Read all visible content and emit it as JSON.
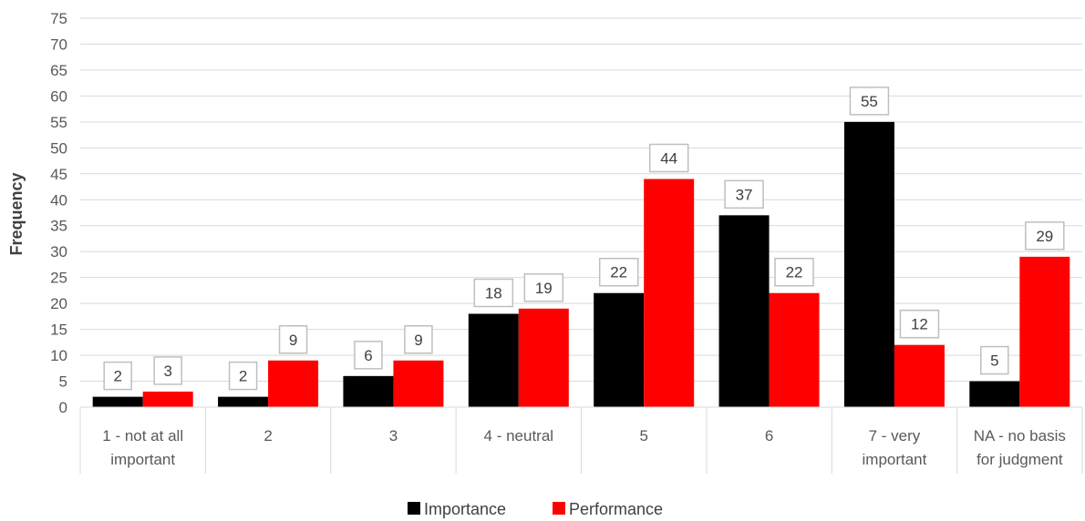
{
  "chart_data": {
    "type": "bar",
    "title": "",
    "xlabel": "",
    "ylabel": "Frequency",
    "ylim": [
      0,
      75
    ],
    "y_ticks": [
      "0",
      "5",
      "10",
      "15",
      "20",
      "25",
      "30",
      "35",
      "40",
      "45",
      "50",
      "55",
      "60",
      "65",
      "70",
      "75"
    ],
    "grid": true,
    "legend_position": "bottom",
    "categories": [
      [
        "1 - not at all",
        "important"
      ],
      [
        "2"
      ],
      [
        "3"
      ],
      [
        "4 - neutral"
      ],
      [
        "5"
      ],
      [
        "6"
      ],
      [
        "7 - very",
        "important"
      ],
      [
        "NA - no basis",
        "for judgment"
      ]
    ],
    "series": [
      {
        "name": "Importance",
        "color": "#000000",
        "values": [
          2,
          2,
          6,
          18,
          22,
          37,
          55,
          5
        ]
      },
      {
        "name": "Performance",
        "color": "#ff0000",
        "values": [
          3,
          9,
          9,
          19,
          44,
          22,
          12,
          29
        ]
      }
    ]
  }
}
